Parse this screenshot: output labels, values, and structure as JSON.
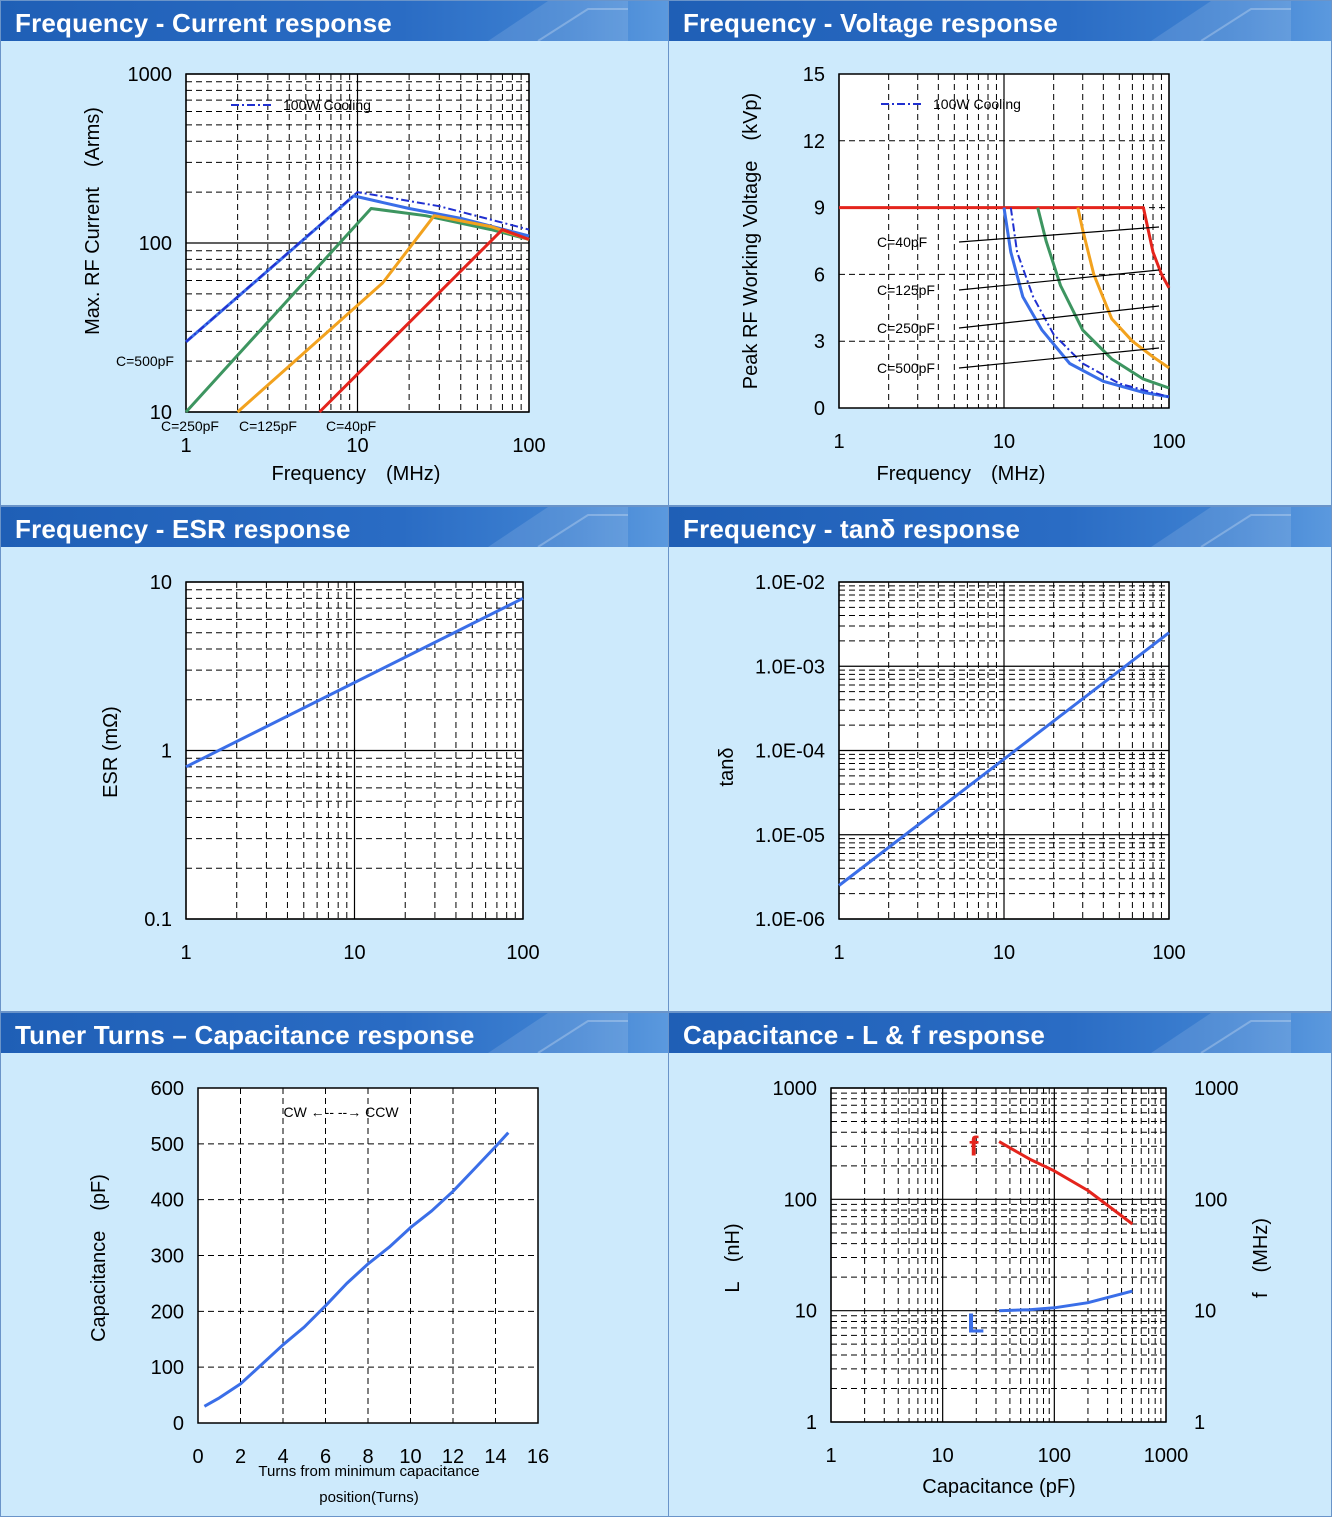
{
  "panels": [
    {
      "title": "Frequency - Current response"
    },
    {
      "title": "Frequency - Voltage response"
    },
    {
      "title": "Frequency - ESR response"
    },
    {
      "title": "Frequency - tanδ response"
    },
    {
      "title": "Tuner Turns – Capacitance response"
    },
    {
      "title": "Capacitance - L & f response"
    }
  ],
  "chart_data": [
    {
      "type": "line",
      "title": "Frequency - Current response",
      "xlabel": "Frequency　(MHz)",
      "ylabel": "Max. RF Current　(Arms)",
      "xscale": "log",
      "yscale": "log",
      "xlim": [
        1,
        100
      ],
      "ylim": [
        10,
        1000
      ],
      "xticks": [
        "1",
        "10",
        "100"
      ],
      "yticks": [
        "10",
        "100",
        "1000"
      ],
      "legend": [
        {
          "label": "100W Cooling",
          "style": "dash-dot",
          "color": "#2030d0"
        }
      ],
      "grid": true,
      "series": [
        {
          "name": "C=500pF",
          "color": "#3a6ee8",
          "points": [
            [
              1,
              26
            ],
            [
              9.5,
              190
            ],
            [
              20,
              160
            ],
            [
              40,
              140
            ],
            [
              100,
              110
            ]
          ]
        },
        {
          "name": "100W Cooling",
          "color": "#2030d0",
          "dash": "8 3 2 3",
          "points": [
            [
              1,
              26
            ],
            [
              10,
              200
            ],
            [
              30,
              165
            ],
            [
              100,
              120
            ]
          ]
        },
        {
          "name": "C=250pF",
          "color": "#3d9560",
          "points": [
            [
              1,
              10
            ],
            [
              12,
              160
            ],
            [
              25,
              145
            ],
            [
              60,
              120
            ],
            [
              100,
              105
            ]
          ]
        },
        {
          "name": "C=125pF",
          "color": "#f2a21e",
          "points": [
            [
              2,
              10
            ],
            [
              14,
              58
            ],
            [
              28,
              145
            ],
            [
              60,
              125
            ],
            [
              100,
              105
            ]
          ]
        },
        {
          "name": "C=40pF",
          "color": "#e4241c",
          "points": [
            [
              6,
              10
            ],
            [
              70,
              120
            ],
            [
              100,
              105
            ]
          ]
        }
      ],
      "annotations": [
        {
          "text": "C=500pF",
          "x": 1,
          "y": 26
        },
        {
          "text": "C=250pF",
          "x": 1,
          "y": 10
        },
        {
          "text": "C=125pF",
          "x": 2,
          "y": 10
        },
        {
          "text": "C=40pF",
          "x": 6,
          "y": 10
        }
      ]
    },
    {
      "type": "line",
      "title": "Frequency - Voltage response",
      "xlabel": "Frequency　(MHz)",
      "ylabel": "Peak RF Working Voltage　(kVp)",
      "xscale": "log",
      "yscale": "linear",
      "xlim": [
        1,
        100
      ],
      "ylim": [
        0,
        15
      ],
      "xticks": [
        "1",
        "10",
        "100"
      ],
      "yticks": [
        "0",
        "3",
        "6",
        "9",
        "12",
        "15"
      ],
      "legend": [
        {
          "label": "100W Cooling",
          "style": "dash-dot",
          "color": "#2030d0"
        }
      ],
      "grid": true,
      "series": [
        {
          "name": "C=40pF",
          "color": "#e4241c",
          "points": [
            [
              1,
              9
            ],
            [
              70,
              9
            ],
            [
              80,
              7
            ],
            [
              90,
              6
            ],
            [
              100,
              5.4
            ]
          ]
        },
        {
          "name": "C=125pF",
          "color": "#f2a21e",
          "points": [
            [
              28,
              9
            ],
            [
              30,
              8
            ],
            [
              35,
              6
            ],
            [
              45,
              4
            ],
            [
              60,
              3
            ],
            [
              80,
              2.3
            ],
            [
              100,
              1.8
            ]
          ]
        },
        {
          "name": "C=250pF",
          "color": "#3d9560",
          "points": [
            [
              16,
              9
            ],
            [
              18,
              7.5
            ],
            [
              22,
              5.5
            ],
            [
              30,
              3.5
            ],
            [
              45,
              2.2
            ],
            [
              70,
              1.3
            ],
            [
              100,
              0.9
            ]
          ]
        },
        {
          "name": "C=500pF",
          "color": "#3a6ee8",
          "points": [
            [
              10,
              9
            ],
            [
              11,
              7
            ],
            [
              13,
              5
            ],
            [
              17,
              3.5
            ],
            [
              25,
              2
            ],
            [
              40,
              1.2
            ],
            [
              70,
              0.7
            ],
            [
              100,
              0.5
            ]
          ]
        },
        {
          "name": "100W Cooling",
          "color": "#2030d0",
          "dash": "8 3 2 3",
          "points": [
            [
              11,
              9
            ],
            [
              12,
              7
            ],
            [
              15,
              5
            ],
            [
              20,
              3.3
            ],
            [
              30,
              2
            ],
            [
              50,
              1.1
            ],
            [
              100,
              0.5
            ]
          ]
        }
      ],
      "annotations": [
        {
          "text": "C=40pF",
          "x": 1.5,
          "y": 7.2
        },
        {
          "text": "C=125pF",
          "x": 1.5,
          "y": 5.2
        },
        {
          "text": "C=250pF",
          "x": 1.5,
          "y": 3.5
        },
        {
          "text": "C=500pF",
          "x": 1.5,
          "y": 1.7
        }
      ]
    },
    {
      "type": "line",
      "title": "Frequency - ESR response",
      "xlabel": "Frequency (MHz)",
      "ylabel": "ESR (mΩ)",
      "xscale": "log",
      "yscale": "log",
      "xlim": [
        1,
        100
      ],
      "ylim": [
        0.1,
        10
      ],
      "xticks": [
        "1",
        "10",
        "100"
      ],
      "yticks": [
        "0.1",
        "1",
        "10"
      ],
      "grid": true,
      "series": [
        {
          "color": "#3a6ee8",
          "points": [
            [
              1,
              0.8
            ],
            [
              100,
              8
            ]
          ]
        }
      ]
    },
    {
      "type": "line",
      "title": "Frequency - tanδ response",
      "xlabel": "Frequency (MHz)",
      "ylabel": "tanδ",
      "xscale": "log",
      "yscale": "log",
      "xlim": [
        1,
        100
      ],
      "ylim": [
        1e-06,
        0.01
      ],
      "xticks": [
        "1",
        "10",
        "100"
      ],
      "yticks": [
        "1.0E-06",
        "1.0E-05",
        "1.0E-04",
        "1.0E-03",
        "1.0E-02"
      ],
      "grid": true,
      "series": [
        {
          "color": "#3a6ee8",
          "points": [
            [
              1,
              2.5e-06
            ],
            [
              100,
              0.0025
            ]
          ]
        }
      ]
    },
    {
      "type": "line",
      "title": "Tuner Turns – Capacitance response",
      "xlabel": "Turns from minimum capacitance position(Turns)",
      "ylabel": "Capacitance　(pF)",
      "xscale": "linear",
      "yscale": "linear",
      "xlim": [
        0,
        16
      ],
      "ylim": [
        0,
        600
      ],
      "xticks": [
        "0",
        "2",
        "4",
        "6",
        "8",
        "10",
        "12",
        "14",
        "16"
      ],
      "yticks": [
        "0",
        "100",
        "200",
        "300",
        "400",
        "500",
        "600"
      ],
      "annotation_text": "CW ←-- --→ CCW",
      "grid": true,
      "series": [
        {
          "color": "#3a6ee8",
          "points": [
            [
              0.3,
              30
            ],
            [
              1,
              45
            ],
            [
              2,
              70
            ],
            [
              3,
              105
            ],
            [
              4,
              140
            ],
            [
              5,
              172
            ],
            [
              6,
              210
            ],
            [
              7,
              250
            ],
            [
              8,
              285
            ],
            [
              9,
              315
            ],
            [
              10,
              350
            ],
            [
              11,
              380
            ],
            [
              12,
              415
            ],
            [
              13,
              455
            ],
            [
              14,
              495
            ],
            [
              14.6,
              520
            ]
          ]
        }
      ]
    },
    {
      "type": "line",
      "title": "Capacitance - L & f response",
      "xlabel": "Capacitance (pF)",
      "ylabel": "L　(nH)",
      "ylabel_right": "f　(MHz)",
      "xscale": "log",
      "yscale": "log",
      "xlim": [
        1,
        1000
      ],
      "ylim": [
        1,
        1000
      ],
      "xticks": [
        "1",
        "10",
        "100",
        "1000"
      ],
      "yticks": [
        "1",
        "10",
        "100",
        "1000"
      ],
      "yticks_right": [
        "1",
        "10",
        "100",
        "1000"
      ],
      "grid": true,
      "series": [
        {
          "name": "f",
          "color": "#e4241c",
          "points": [
            [
              32,
              330
            ],
            [
              60,
              230
            ],
            [
              100,
              180
            ],
            [
              200,
              120
            ],
            [
              500,
              60
            ]
          ]
        },
        {
          "name": "L",
          "color": "#3a6ee8",
          "points": [
            [
              32,
              10
            ],
            [
              60,
              10.2
            ],
            [
              100,
              10.6
            ],
            [
              200,
              11.8
            ],
            [
              500,
              15
            ]
          ]
        }
      ]
    }
  ]
}
